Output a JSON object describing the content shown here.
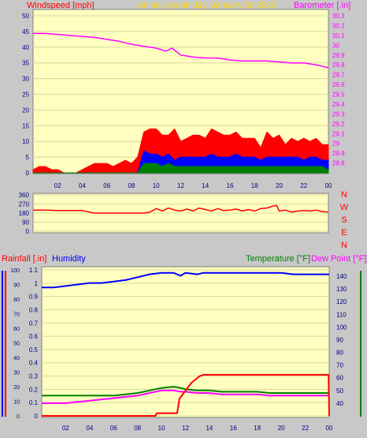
{
  "colors": {
    "plot_bg": "#ffffc0",
    "page_bg": "#c8c8c8",
    "wind_red": "#ff0000",
    "wind_blue": "#0000ff",
    "wind_green": "#008000",
    "barometer": "#ff00ff",
    "direction": "#ff0000",
    "rain": "#ff0000",
    "humidity": "#0000ff",
    "temperature": "#008000",
    "dew_point": "#ff00ff",
    "title": "#ffd700",
    "axis_text": "#000080"
  },
  "header": {
    "windspeed_label": "Windspeed [mph]",
    "title": "24 hour graph day:  January 03 2023",
    "barometer_label": "Barometer [.in]"
  },
  "footer_labels": {
    "rainfall_label": "Rainfall [.in]",
    "humidity_label": "Humidity",
    "temperature_label": "Temperature [°F]",
    "dewpoint_label": "Dew Point [°F]"
  },
  "compass": [
    "N",
    "W",
    "S",
    "E",
    "N"
  ],
  "chart_data": [
    {
      "type": "line",
      "name_id": "wind-barometer",
      "x_ticks": [
        "02",
        "04",
        "06",
        "08",
        "10",
        "12",
        "14",
        "16",
        "18",
        "20",
        "22",
        "00"
      ],
      "x_range": [
        0,
        24
      ],
      "left_axis": {
        "ylim": [
          0,
          50
        ],
        "ticks": [
          "0",
          "5",
          "10",
          "15",
          "20",
          "25",
          "30",
          "35",
          "40",
          "45",
          "50"
        ]
      },
      "right_axis": {
        "ylim": [
          28.7,
          30.3
        ],
        "ticks": [
          "28.8",
          "28.9",
          "29",
          "29.1",
          "29.2",
          "29.3",
          "29.4",
          "29.5",
          "29.6",
          "29.7",
          "29.8",
          "29.9",
          "30",
          "30.1",
          "30.2",
          "30.3"
        ]
      },
      "series": [
        {
          "key": "barometer",
          "x": [
            0,
            1,
            2,
            3,
            4,
            5,
            6,
            7,
            8,
            9,
            10,
            10.8,
            11.3,
            12,
            13,
            14,
            15,
            16,
            17,
            18,
            19,
            20,
            21,
            22,
            23,
            24
          ],
          "y": [
            30.12,
            30.12,
            30.11,
            30.1,
            30.09,
            30.08,
            30.06,
            30.04,
            30.01,
            29.99,
            29.97,
            29.94,
            29.97,
            29.9,
            29.88,
            29.87,
            29.87,
            29.85,
            29.84,
            29.84,
            29.84,
            29.83,
            29.82,
            29.82,
            29.8,
            29.77
          ]
        },
        {
          "key": "gust_envelope",
          "x": [
            0,
            0.5,
            1,
            1.5,
            2,
            2.5,
            3,
            3.5,
            4,
            4.5,
            5,
            5.5,
            6,
            6.5,
            7,
            7.5,
            8,
            8.5,
            9,
            9.5,
            10,
            10.5,
            11,
            11.5,
            12,
            12.5,
            13,
            13.5,
            14,
            14.5,
            15,
            15.5,
            16,
            16.5,
            17,
            17.5,
            18,
            18.5,
            19,
            19.5,
            20,
            20.5,
            21,
            21.5,
            22,
            22.5,
            23,
            23.5,
            24
          ],
          "y": [
            1,
            2,
            2,
            1,
            1,
            0,
            0,
            0,
            1,
            2,
            3,
            3,
            3,
            2,
            3,
            4,
            3,
            5,
            13,
            14,
            14,
            12,
            12,
            14,
            10,
            11,
            12,
            12,
            11,
            14,
            13,
            12,
            12,
            13,
            11,
            11,
            11,
            8,
            13,
            11,
            12,
            9,
            11,
            10,
            11,
            10,
            11,
            9,
            9
          ]
        },
        {
          "key": "avg_speed",
          "x": [
            0,
            1,
            2,
            3,
            4,
            5,
            6,
            7,
            8,
            8.5,
            9,
            9.5,
            10,
            10.5,
            11,
            11.5,
            12,
            12.5,
            13,
            13.5,
            14,
            14.5,
            15,
            15.5,
            16,
            16.5,
            17,
            17.5,
            18,
            18.5,
            19,
            19.5,
            20,
            20.5,
            21,
            21.5,
            22,
            22.5,
            23,
            23.5,
            24
          ],
          "y": [
            0,
            0,
            0,
            0,
            0,
            0,
            0,
            0,
            0,
            0,
            7,
            6,
            6,
            5,
            6,
            4,
            5,
            5,
            5,
            5,
            5,
            6,
            5,
            5,
            5,
            6,
            5,
            5,
            5,
            4,
            5,
            5,
            5,
            5,
            5,
            5,
            4,
            5,
            5,
            4,
            4
          ]
        },
        {
          "key": "low_speed",
          "x": [
            0,
            1,
            2,
            3,
            4,
            5,
            6,
            7,
            8,
            8.5,
            9,
            9.5,
            10,
            10.5,
            11,
            11.5,
            12,
            12.5,
            13,
            13.5,
            14,
            14.5,
            15,
            15.5,
            16,
            16.5,
            17,
            17.5,
            18,
            18.5,
            19,
            19.5,
            20,
            20.5,
            21,
            21.5,
            22,
            22.5,
            23,
            23.5,
            24
          ],
          "y": [
            0,
            0,
            0,
            0,
            0,
            0,
            0,
            0,
            0,
            0,
            3,
            3,
            3,
            2,
            3,
            2,
            2,
            2,
            2,
            2,
            2,
            2,
            2,
            2,
            2,
            2,
            2,
            2,
            2,
            2,
            2,
            2,
            2,
            2,
            2,
            2,
            2,
            2,
            2,
            2,
            1
          ]
        }
      ]
    },
    {
      "type": "line",
      "name_id": "wind-direction",
      "x_range": [
        0,
        24
      ],
      "ylim": [
        0,
        360
      ],
      "ticks": [
        "0",
        "90",
        "180",
        "270",
        "360"
      ],
      "series": [
        {
          "key": "direction",
          "x": [
            0,
            1,
            2,
            3,
            4,
            5,
            6,
            7,
            8,
            9,
            9.5,
            10,
            10.5,
            11,
            11.5,
            12,
            12.5,
            13,
            13.5,
            14,
            14.5,
            15,
            15.5,
            16,
            16.5,
            17,
            17.5,
            18,
            18.5,
            19,
            19.5,
            19.8,
            20,
            20.5,
            21,
            21.5,
            22,
            22.5,
            23,
            23.5,
            24
          ],
          "y": [
            210,
            210,
            205,
            205,
            205,
            180,
            180,
            180,
            180,
            180,
            190,
            225,
            200,
            230,
            210,
            200,
            220,
            200,
            230,
            215,
            200,
            225,
            205,
            210,
            220,
            200,
            215,
            200,
            225,
            230,
            250,
            255,
            200,
            210,
            190,
            200,
            205,
            200,
            210,
            195,
            190
          ]
        }
      ]
    },
    {
      "type": "line",
      "name_id": "rain-humidity-temperature",
      "x_ticks": [
        "02",
        "04",
        "06",
        "08",
        "10",
        "12",
        "14",
        "16",
        "18",
        "20",
        "22",
        "00"
      ],
      "x_range": [
        0,
        24
      ],
      "rain_axis": {
        "ylim": [
          0,
          1.1
        ],
        "ticks": [
          "0",
          "0.1",
          "0.2",
          "0.3",
          "0.4",
          "0.5",
          "0.6",
          "0.7",
          "0.8",
          "0.9",
          "1",
          "1.1"
        ]
      },
      "humidity_axis": {
        "ylim": [
          0,
          100
        ],
        "ticks": [
          "0",
          "10",
          "20",
          "30",
          "40",
          "50",
          "60",
          "70",
          "80",
          "90",
          "100"
        ]
      },
      "temp_axis": {
        "ylim": [
          30,
          145
        ],
        "ticks": [
          "40",
          "50",
          "60",
          "70",
          "80",
          "90",
          "100",
          "110",
          "120",
          "130",
          "140"
        ]
      },
      "series": [
        {
          "key": "humidity",
          "x": [
            0,
            1,
            2,
            3,
            4,
            5,
            6,
            7,
            8,
            9,
            10,
            11,
            11.6,
            12,
            13,
            13.5,
            14,
            15,
            16,
            17,
            18,
            19,
            20,
            21,
            22,
            23,
            24
          ],
          "y": [
            88,
            88,
            89,
            90,
            91,
            91,
            92,
            93,
            95,
            97,
            98,
            98,
            96,
            98,
            97,
            98,
            98,
            98,
            98,
            98,
            98,
            98,
            98,
            97,
            97,
            97,
            97
          ]
        },
        {
          "key": "rain",
          "x": [
            0,
            9.5,
            9.6,
            11.3,
            11.5,
            12.5,
            13.2,
            13.5,
            14,
            23.95,
            24
          ],
          "y": [
            0,
            0,
            0.02,
            0.02,
            0.13,
            0.25,
            0.3,
            0.31,
            0.31,
            0.31,
            0
          ]
        },
        {
          "key": "temperature",
          "x": [
            0,
            1,
            2,
            3,
            4,
            5,
            6,
            7,
            8,
            9,
            10,
            11,
            11.6,
            12,
            13,
            14,
            15,
            16,
            17,
            18,
            19,
            20,
            21,
            22,
            23,
            24
          ],
          "y": [
            46,
            46,
            46,
            46,
            46,
            46,
            46,
            47,
            48,
            50,
            52,
            53,
            52,
            51,
            50,
            50,
            49,
            49,
            49,
            49,
            48,
            48,
            48,
            48,
            48,
            48
          ]
        },
        {
          "key": "dew_point",
          "x": [
            0,
            1,
            2,
            3,
            4,
            5,
            6,
            7,
            8,
            9,
            10,
            11,
            11.6,
            12,
            13,
            14,
            15,
            16,
            17,
            18,
            19,
            20,
            21,
            22,
            23,
            24
          ],
          "y": [
            40,
            40,
            40,
            41,
            42,
            43,
            44,
            45,
            46,
            48,
            50,
            50,
            49,
            49,
            48,
            48,
            47,
            47,
            47,
            47,
            46,
            46,
            46,
            46,
            46,
            46
          ]
        }
      ]
    }
  ]
}
